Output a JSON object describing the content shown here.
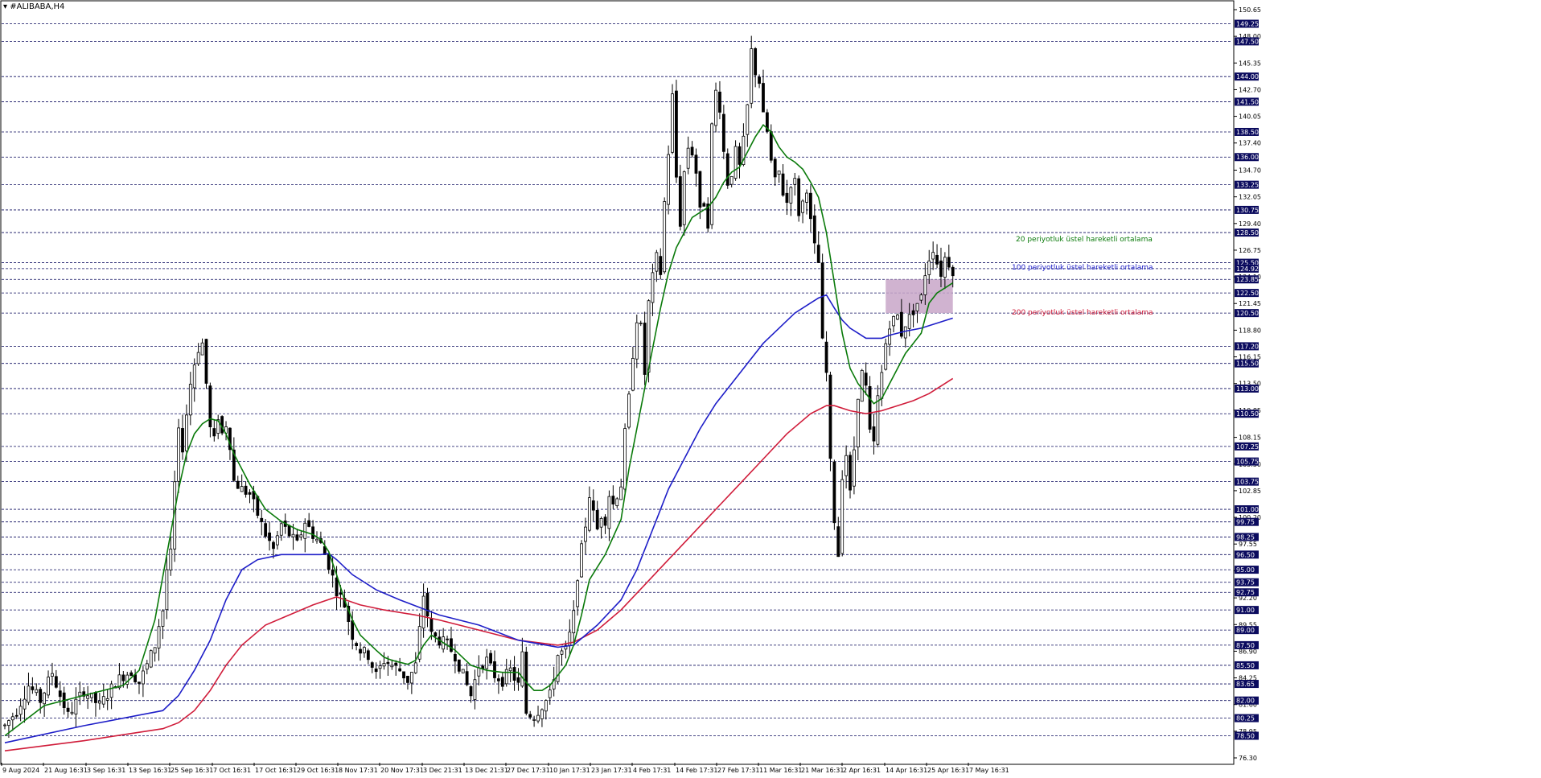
{
  "symbol": "#ALIBABA,H4",
  "chart_data": {
    "type": "candlestick",
    "ylim": [
      76.3,
      150.65
    ],
    "y_tick_labels": [
      "150.65",
      "148.00",
      "145.35",
      "142.70",
      "140.05",
      "137.40",
      "134.70",
      "132.05",
      "129.40",
      "126.75",
      "124.10",
      "121.45",
      "118.80",
      "116.15",
      "113.50",
      "110.85",
      "108.15",
      "105.50",
      "102.85",
      "100.20",
      "97.55",
      "94.90",
      "92.20",
      "89.55",
      "86.90",
      "84.25",
      "81.60",
      "78.95",
      "76.30"
    ],
    "x_tick_labels": [
      "9 Aug 2024",
      "21 Aug 16:31",
      "3 Sep 16:31",
      "13 Sep 16:31",
      "25 Sep 16:31",
      "7 Oct 16:31",
      "17 Oct 16:31",
      "29 Oct 16:31",
      "8 Nov 17:31",
      "20 Nov 17:31",
      "3 Dec 21:31",
      "13 Dec 21:31",
      "27 Dec 17:31",
      "10 Jan 17:31",
      "23 Jan 17:31",
      "4 Feb 17:31",
      "14 Feb 17:31",
      "27 Feb 17:31",
      "11 Mar 16:31",
      "21 Mar 16:31",
      "2 Apr 16:31",
      "14 Apr 16:31",
      "25 Apr 16:31",
      "7 May 16:31"
    ],
    "level_lines": [
      "149.25",
      "147.50",
      "144.00",
      "141.50",
      "138.50",
      "136.00",
      "133.25",
      "130.75",
      "128.50",
      "125.50",
      "124.92",
      "123.85",
      "122.50",
      "120.50",
      "117.20",
      "115.50",
      "113.00",
      "110.50",
      "107.25",
      "105.75",
      "103.75",
      "101.00",
      "99.75",
      "98.25",
      "96.50",
      "95.00",
      "93.75",
      "92.75",
      "91.00",
      "89.00",
      "87.50",
      "85.50",
      "83.65",
      "82.00",
      "80.25",
      "78.50"
    ],
    "price_path": [
      [
        0,
        79.5
      ],
      [
        3,
        81.0
      ],
      [
        6,
        83.5
      ],
      [
        9,
        82.0
      ],
      [
        12,
        84.8
      ],
      [
        14,
        82.5
      ],
      [
        16,
        80.5
      ],
      [
        18,
        81.8
      ],
      [
        20,
        83.0
      ],
      [
        22,
        82.2
      ],
      [
        24,
        81.5
      ],
      [
        26,
        82.6
      ],
      [
        28,
        83.8
      ],
      [
        30,
        84.5
      ],
      [
        32,
        84.9
      ],
      [
        34,
        83.8
      ],
      [
        36,
        85.5
      ],
      [
        38,
        87.5
      ],
      [
        39,
        89.5
      ],
      [
        40,
        91.0
      ],
      [
        41,
        95.0
      ],
      [
        42,
        96.5
      ],
      [
        43,
        103.5
      ],
      [
        44,
        108.5
      ],
      [
        45,
        107.2
      ],
      [
        46,
        110.5
      ],
      [
        47,
        113.5
      ],
      [
        48,
        115.5
      ],
      [
        49,
        117.0
      ],
      [
        50,
        117.5
      ],
      [
        51,
        113.5
      ],
      [
        52,
        109.0
      ],
      [
        53,
        107.8
      ],
      [
        54,
        110.3
      ],
      [
        55,
        108.5
      ],
      [
        56,
        109.5
      ],
      [
        57,
        107.5
      ],
      [
        58,
        103.8
      ],
      [
        60,
        103.0
      ],
      [
        62,
        102.5
      ],
      [
        64,
        100.5
      ],
      [
        66,
        98.5
      ],
      [
        68,
        97.0
      ],
      [
        70,
        99.5
      ],
      [
        72,
        98.5
      ],
      [
        74,
        97.5
      ],
      [
        76,
        99.8
      ],
      [
        78,
        98.5
      ],
      [
        80,
        97.5
      ],
      [
        82,
        95.5
      ],
      [
        84,
        93.0
      ],
      [
        86,
        91.5
      ],
      [
        88,
        88.5
      ],
      [
        90,
        87.0
      ],
      [
        92,
        86.5
      ],
      [
        94,
        84.5
      ],
      [
        96,
        86.0
      ],
      [
        98,
        85.5
      ],
      [
        100,
        85.0
      ],
      [
        102,
        84.0
      ],
      [
        104,
        85.5
      ],
      [
        106,
        92.5
      ],
      [
        107,
        90.5
      ],
      [
        108,
        88.5
      ],
      [
        110,
        88.0
      ],
      [
        112,
        87.5
      ],
      [
        114,
        86.5
      ],
      [
        116,
        84.5
      ],
      [
        118,
        82.5
      ],
      [
        120,
        85.5
      ],
      [
        122,
        86.0
      ],
      [
        124,
        84.5
      ],
      [
        126,
        84.0
      ],
      [
        128,
        85.0
      ],
      [
        130,
        83.5
      ],
      [
        131,
        86.5
      ],
      [
        132,
        80.8
      ],
      [
        134,
        80.5
      ],
      [
        136,
        81.5
      ],
      [
        138,
        82.5
      ],
      [
        139,
        84.5
      ],
      [
        140,
        86.5
      ],
      [
        142,
        87.0
      ],
      [
        143,
        88.5
      ],
      [
        144,
        90.5
      ],
      [
        145,
        94.5
      ],
      [
        146,
        97.0
      ],
      [
        147,
        99.5
      ],
      [
        148,
        102.5
      ],
      [
        149,
        100.5
      ],
      [
        150,
        99.0
      ],
      [
        151,
        100.5
      ],
      [
        152,
        100.0
      ],
      [
        153,
        102.5
      ],
      [
        154,
        101.5
      ],
      [
        156,
        103.5
      ],
      [
        157,
        108.5
      ],
      [
        158,
        112.0
      ],
      [
        159,
        116.5
      ],
      [
        160,
        120.0
      ],
      [
        161,
        119.0
      ],
      [
        162,
        114.5
      ],
      [
        163,
        121.5
      ],
      [
        164,
        124.0
      ],
      [
        165,
        126.0
      ],
      [
        166,
        124.5
      ],
      [
        167,
        131.5
      ],
      [
        168,
        136.5
      ],
      [
        169,
        142.0
      ],
      [
        170,
        134.0
      ],
      [
        171,
        129.5
      ],
      [
        172,
        134.5
      ],
      [
        173,
        137.0
      ],
      [
        174,
        136.5
      ],
      [
        175,
        134.5
      ],
      [
        176,
        130.5
      ],
      [
        177,
        131.5
      ],
      [
        178,
        129.5
      ],
      [
        179,
        139.0
      ],
      [
        180,
        142.5
      ],
      [
        181,
        141.0
      ],
      [
        182,
        136.5
      ],
      [
        183,
        133.5
      ],
      [
        184,
        134.5
      ],
      [
        185,
        136.5
      ],
      [
        186,
        135.0
      ],
      [
        187,
        137.5
      ],
      [
        188,
        141.0
      ],
      [
        189,
        146.5
      ],
      [
        190,
        144.5
      ],
      [
        191,
        143.5
      ],
      [
        192,
        140.0
      ],
      [
        193,
        138.5
      ],
      [
        194,
        135.5
      ],
      [
        195,
        133.5
      ],
      [
        196,
        134.5
      ],
      [
        197,
        132.5
      ],
      [
        198,
        131.5
      ],
      [
        199,
        133.5
      ],
      [
        200,
        133.5
      ],
      [
        201,
        130.5
      ],
      [
        202,
        131.5
      ],
      [
        203,
        133.0
      ],
      [
        204,
        129.5
      ],
      [
        205,
        127.0
      ],
      [
        206,
        125.5
      ],
      [
        207,
        117.5
      ],
      [
        208,
        114.5
      ],
      [
        209,
        105.5
      ],
      [
        210,
        100.0
      ],
      [
        211,
        96.5
      ],
      [
        212,
        104.5
      ],
      [
        213,
        106.5
      ],
      [
        214,
        102.5
      ],
      [
        215,
        107.0
      ],
      [
        216,
        112.5
      ],
      [
        217,
        114.5
      ],
      [
        218,
        113.0
      ],
      [
        219,
        108.5
      ],
      [
        220,
        107.5
      ],
      [
        221,
        112.0
      ],
      [
        222,
        114.5
      ],
      [
        223,
        117.5
      ],
      [
        224,
        119.5
      ],
      [
        225,
        119.8
      ],
      [
        226,
        120.2
      ],
      [
        227,
        118.5
      ],
      [
        228,
        119.5
      ],
      [
        229,
        120.0
      ],
      [
        230,
        120.8
      ],
      [
        231,
        121.5
      ],
      [
        232,
        122.0
      ],
      [
        233,
        124.5
      ],
      [
        234,
        126.0
      ],
      [
        235,
        127.0
      ],
      [
        236,
        125.5
      ],
      [
        237,
        124.5
      ],
      [
        238,
        126.0
      ],
      [
        239,
        125.5
      ],
      [
        240,
        124.8
      ]
    ],
    "ema20_path": [
      [
        0,
        78.5
      ],
      [
        10,
        81.5
      ],
      [
        20,
        82.5
      ],
      [
        30,
        83.5
      ],
      [
        34,
        85.0
      ],
      [
        38,
        90.0
      ],
      [
        41,
        96.5
      ],
      [
        44,
        103.0
      ],
      [
        46,
        106.5
      ],
      [
        48,
        108.5
      ],
      [
        50,
        109.5
      ],
      [
        52,
        110.0
      ],
      [
        54,
        109.8
      ],
      [
        56,
        108.5
      ],
      [
        58,
        106.5
      ],
      [
        62,
        103.5
      ],
      [
        66,
        101.0
      ],
      [
        70,
        99.8
      ],
      [
        74,
        99.0
      ],
      [
        78,
        98.5
      ],
      [
        80,
        98.0
      ],
      [
        82,
        96.8
      ],
      [
        84,
        94.5
      ],
      [
        86,
        92.0
      ],
      [
        88,
        90.0
      ],
      [
        90,
        88.5
      ],
      [
        94,
        87.0
      ],
      [
        96,
        86.3
      ],
      [
        98,
        86.0
      ],
      [
        100,
        85.8
      ],
      [
        102,
        85.6
      ],
      [
        104,
        86.0
      ],
      [
        106,
        87.5
      ],
      [
        108,
        88.5
      ],
      [
        110,
        88.0
      ],
      [
        114,
        87.0
      ],
      [
        118,
        85.5
      ],
      [
        122,
        85.0
      ],
      [
        126,
        84.8
      ],
      [
        130,
        84.8
      ],
      [
        132,
        83.8
      ],
      [
        134,
        83.0
      ],
      [
        136,
        83.0
      ],
      [
        138,
        83.5
      ],
      [
        140,
        84.5
      ],
      [
        142,
        85.5
      ],
      [
        144,
        87.5
      ],
      [
        146,
        90.5
      ],
      [
        148,
        94.0
      ],
      [
        152,
        96.5
      ],
      [
        156,
        100.0
      ],
      [
        158,
        105.0
      ],
      [
        160,
        109.0
      ],
      [
        162,
        113.0
      ],
      [
        164,
        117.0
      ],
      [
        166,
        121.0
      ],
      [
        168,
        124.5
      ],
      [
        170,
        127.0
      ],
      [
        172,
        128.5
      ],
      [
        174,
        130.0
      ],
      [
        176,
        130.5
      ],
      [
        178,
        131.0
      ],
      [
        180,
        132.0
      ],
      [
        182,
        133.5
      ],
      [
        184,
        134.5
      ],
      [
        186,
        135.0
      ],
      [
        188,
        136.5
      ],
      [
        190,
        138.0
      ],
      [
        192,
        139.2
      ],
      [
        194,
        138.5
      ],
      [
        196,
        137.0
      ],
      [
        198,
        136.0
      ],
      [
        200,
        135.5
      ],
      [
        202,
        134.8
      ],
      [
        204,
        133.5
      ],
      [
        206,
        132.0
      ],
      [
        208,
        128.5
      ],
      [
        210,
        123.5
      ],
      [
        212,
        118.5
      ],
      [
        214,
        115.0
      ],
      [
        216,
        113.5
      ],
      [
        218,
        112.5
      ],
      [
        220,
        111.5
      ],
      [
        222,
        112.0
      ],
      [
        224,
        113.5
      ],
      [
        226,
        115.0
      ],
      [
        228,
        116.5
      ],
      [
        230,
        117.5
      ],
      [
        232,
        118.5
      ],
      [
        234,
        121.5
      ],
      [
        236,
        122.5
      ],
      [
        238,
        123.0
      ],
      [
        240,
        123.5
      ]
    ],
    "ema100_path": [
      [
        0,
        77.8
      ],
      [
        20,
        79.5
      ],
      [
        40,
        81.0
      ],
      [
        44,
        82.5
      ],
      [
        48,
        85.0
      ],
      [
        52,
        88.0
      ],
      [
        56,
        92.0
      ],
      [
        60,
        95.0
      ],
      [
        64,
        96.0
      ],
      [
        70,
        96.5
      ],
      [
        76,
        96.5
      ],
      [
        80,
        96.5
      ],
      [
        82,
        96.6
      ],
      [
        84,
        96.0
      ],
      [
        88,
        94.5
      ],
      [
        94,
        93.0
      ],
      [
        100,
        92.0
      ],
      [
        110,
        90.5
      ],
      [
        120,
        89.5
      ],
      [
        130,
        88.0
      ],
      [
        140,
        87.3
      ],
      [
        144,
        87.5
      ],
      [
        150,
        89.5
      ],
      [
        156,
        92.0
      ],
      [
        160,
        95.0
      ],
      [
        164,
        99.0
      ],
      [
        168,
        103.0
      ],
      [
        172,
        106.0
      ],
      [
        176,
        109.0
      ],
      [
        180,
        111.5
      ],
      [
        184,
        113.5
      ],
      [
        188,
        115.5
      ],
      [
        192,
        117.5
      ],
      [
        196,
        119.0
      ],
      [
        200,
        120.5
      ],
      [
        204,
        121.5
      ],
      [
        206,
        122.0
      ],
      [
        208,
        122.3
      ],
      [
        210,
        121.0
      ],
      [
        212,
        119.8
      ],
      [
        214,
        119.0
      ],
      [
        216,
        118.5
      ],
      [
        218,
        118.0
      ],
      [
        220,
        118.0
      ],
      [
        222,
        118.0
      ],
      [
        224,
        118.3
      ],
      [
        226,
        118.5
      ],
      [
        228,
        118.7
      ],
      [
        232,
        119.0
      ],
      [
        236,
        119.5
      ],
      [
        240,
        120.0
      ]
    ],
    "ema200_path": [
      [
        0,
        77.0
      ],
      [
        20,
        78.0
      ],
      [
        40,
        79.2
      ],
      [
        44,
        79.8
      ],
      [
        48,
        81.0
      ],
      [
        52,
        83.0
      ],
      [
        56,
        85.5
      ],
      [
        60,
        87.5
      ],
      [
        66,
        89.5
      ],
      [
        72,
        90.5
      ],
      [
        78,
        91.5
      ],
      [
        84,
        92.3
      ],
      [
        90,
        91.5
      ],
      [
        96,
        91.0
      ],
      [
        104,
        90.5
      ],
      [
        110,
        90.0
      ],
      [
        120,
        89.0
      ],
      [
        130,
        88.0
      ],
      [
        140,
        87.5
      ],
      [
        144,
        87.8
      ],
      [
        150,
        89.0
      ],
      [
        156,
        91.0
      ],
      [
        162,
        93.5
      ],
      [
        168,
        96.0
      ],
      [
        174,
        98.5
      ],
      [
        180,
        101.0
      ],
      [
        186,
        103.5
      ],
      [
        192,
        106.0
      ],
      [
        198,
        108.5
      ],
      [
        204,
        110.5
      ],
      [
        208,
        111.3
      ],
      [
        210,
        111.3
      ],
      [
        214,
        110.8
      ],
      [
        218,
        110.5
      ],
      [
        222,
        110.8
      ],
      [
        226,
        111.3
      ],
      [
        230,
        111.8
      ],
      [
        234,
        112.5
      ],
      [
        238,
        113.5
      ],
      [
        240,
        114.0
      ]
    ],
    "zone": {
      "low": 120.5,
      "high": 123.85,
      "x_from": 223,
      "x_to": 240
    },
    "series": [
      {
        "label": "20 periyotluk üstel hareketli ortalama",
        "color": "#0a7a0a"
      },
      {
        "label": "100 periyotluk üstel hareketli ortalama",
        "color": "#1e1ec8"
      },
      {
        "label": "200 periyotluk üstel hareketli ortalama",
        "color": "#d01c3a"
      }
    ],
    "grid": true,
    "level_color": "#0b0b5e",
    "candle_up_color": "#000000",
    "candle_down_color": "#000000",
    "zone_color": "#c8a6c8"
  }
}
